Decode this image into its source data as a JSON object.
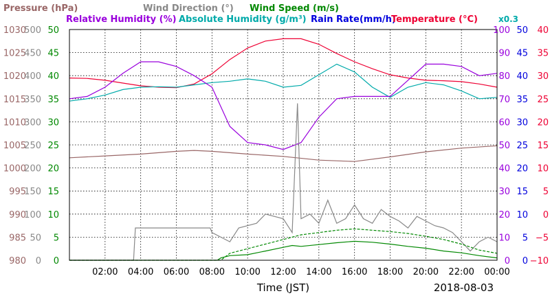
{
  "chart_data": {
    "type": "line",
    "date": "2018-08-03",
    "xlabel": "Time (JST)",
    "x_ticks": [
      "02:00",
      "04:00",
      "06:00",
      "08:00",
      "10:00",
      "12:00",
      "14:00",
      "16:00",
      "18:00",
      "20:00",
      "22:00",
      "00:00"
    ],
    "xlim_hours": [
      0,
      24
    ],
    "grid": true,
    "legend": [
      {
        "label": "Pressure (hPa)",
        "color": "#996666"
      },
      {
        "label": "Wind Direction (°)",
        "color": "#888888"
      },
      {
        "label": "Wind Speed (m/s)",
        "color": "#008800"
      },
      {
        "label": "Relative Humidity (%)",
        "color": "#9900dd"
      },
      {
        "label": "Absolute Humidity (g/m³)",
        "color": "#00aaaa"
      },
      {
        "label": "x0.3",
        "color": "#00aaaa"
      },
      {
        "label": "Rain Rate(mm/h)",
        "color": "#0000dd"
      },
      {
        "label": "Temperature (°C)",
        "color": "#ee0033"
      }
    ],
    "axes": {
      "pressure": {
        "color": "#996666",
        "ticks": [
          "980",
          "985",
          "990",
          "995",
          "1000",
          "1005",
          "1010",
          "1015",
          "1020",
          "1025",
          "1030"
        ],
        "range": [
          980,
          1030
        ]
      },
      "wind_direction": {
        "color": "#888888",
        "ticks": [
          "0",
          "50",
          "100",
          "150",
          "200",
          "250",
          "300",
          "350",
          "400",
          "450",
          "500"
        ],
        "range": [
          0,
          500
        ]
      },
      "wind_speed": {
        "color": "#008800",
        "ticks": [
          "0",
          "5",
          "10",
          "15",
          "20",
          "25",
          "30",
          "35",
          "40",
          "45",
          "50"
        ],
        "range": [
          0,
          50
        ]
      },
      "relative_humidity": {
        "color": "#9900dd",
        "ticks": [
          "0",
          "10",
          "20",
          "30",
          "40",
          "50",
          "60",
          "70",
          "80",
          "90",
          "100"
        ],
        "range": [
          0,
          100
        ]
      },
      "rain_rate": {
        "color": "#0000dd",
        "ticks": [
          "0",
          "5",
          "10",
          "15",
          "20",
          "25",
          "30",
          "35",
          "40",
          "45",
          "50"
        ],
        "range": [
          0,
          50
        ]
      },
      "temperature": {
        "color": "#ee0033",
        "ticks": [
          "−10",
          "−5",
          "0",
          "5",
          "10",
          "15",
          "20",
          "25",
          "30",
          "35",
          "40"
        ],
        "range": [
          -10,
          40
        ]
      }
    },
    "series": [
      {
        "name": "Pressure (hPa)",
        "axis": "pressure",
        "color": "#996666",
        "x": [
          0,
          2,
          4,
          6,
          7,
          8,
          10,
          12,
          14,
          16,
          18,
          20,
          22,
          24
        ],
        "y": [
          1002.2,
          1002.6,
          1003.0,
          1003.6,
          1003.8,
          1003.6,
          1003.0,
          1002.5,
          1001.7,
          1001.4,
          1002.4,
          1003.5,
          1004.3,
          1004.8
        ]
      },
      {
        "name": "Temperature (°C)",
        "axis": "temperature",
        "color": "#ee0033",
        "x": [
          0,
          1,
          2,
          3,
          4,
          5,
          6,
          7,
          8,
          9,
          10,
          11,
          12,
          13,
          14,
          15,
          16,
          17,
          18,
          19,
          20,
          21,
          22,
          23,
          24
        ],
        "y": [
          29.5,
          29.4,
          29.0,
          28.4,
          27.8,
          27.5,
          27.4,
          28.2,
          30.4,
          33.5,
          36.0,
          37.5,
          38.0,
          38.0,
          36.8,
          34.8,
          33.0,
          31.5,
          30.2,
          29.5,
          29.0,
          28.9,
          28.7,
          28.2,
          27.5
        ]
      },
      {
        "name": "Absolute Humidity (g/m³)",
        "axis": "wind_speed",
        "color": "#00aaaa",
        "x": [
          0,
          1,
          2,
          3,
          4,
          5,
          6,
          7,
          8,
          9,
          10,
          11,
          12,
          13,
          14,
          15,
          16,
          17,
          18,
          19,
          20,
          21,
          22,
          23,
          24
        ],
        "y": [
          34.5,
          35.0,
          35.8,
          37.0,
          37.5,
          37.6,
          37.5,
          38.0,
          38.5,
          38.8,
          39.3,
          38.8,
          37.5,
          37.9,
          40.2,
          42.5,
          40.8,
          37.5,
          35.3,
          37.5,
          38.5,
          38.0,
          36.7,
          35.0,
          35.3
        ]
      },
      {
        "name": "Relative Humidity (%)",
        "axis": "relative_humidity",
        "color": "#9900dd",
        "x": [
          0,
          1,
          2,
          3,
          4,
          5,
          6,
          7,
          8,
          9,
          10,
          11,
          12,
          13,
          14,
          15,
          16,
          17,
          18,
          19,
          20,
          21,
          22,
          23,
          24
        ],
        "y": [
          70,
          71,
          75,
          81,
          86,
          86,
          84,
          80,
          75,
          58,
          51,
          50,
          48,
          51,
          62,
          70,
          71,
          71,
          71,
          78,
          85,
          85,
          84,
          80,
          81
        ]
      },
      {
        "name": "Wind Direction (°)",
        "axis": "wind_direction",
        "color": "#888888",
        "x": [
          0,
          3.6,
          3.7,
          7.9,
          8.0,
          9.0,
          9.5,
          10.5,
          11.0,
          12.0,
          12.5,
          12.8,
          13.0,
          13.5,
          14.0,
          14.5,
          15.0,
          15.5,
          16.0,
          16.5,
          17.0,
          17.5,
          18.0,
          18.5,
          19.0,
          19.5,
          20.0,
          20.5,
          21.0,
          21.5,
          22.0,
          22.5,
          23.0,
          23.5,
          24.0
        ],
        "y": [
          0,
          0,
          70,
          70,
          60,
          40,
          70,
          80,
          100,
          90,
          60,
          340,
          90,
          100,
          80,
          130,
          80,
          90,
          120,
          90,
          80,
          110,
          95,
          85,
          70,
          95,
          85,
          75,
          70,
          60,
          40,
          20,
          40,
          50,
          40
        ]
      },
      {
        "name": "Wind Speed (m/s)",
        "axis": "wind_speed",
        "color": "#008800",
        "x": [
          0,
          8.3,
          8.5,
          9,
          10,
          11,
          12,
          12.5,
          13,
          14,
          15,
          16,
          17,
          18,
          19,
          20,
          21,
          22,
          23,
          24
        ],
        "y": [
          0,
          0,
          0.5,
          1.0,
          1.2,
          2.0,
          2.8,
          3.2,
          3.0,
          3.4,
          3.8,
          4.1,
          3.9,
          3.5,
          3.0,
          2.6,
          2.0,
          1.6,
          1.0,
          0.5
        ]
      },
      {
        "name": "Wind Speed (m/s)",
        "axis": "wind_speed",
        "color": "#008800",
        "dashed": true,
        "x": [
          0,
          8.5,
          9,
          10,
          11,
          12,
          13,
          14,
          15,
          16,
          17,
          18,
          19,
          20,
          21,
          22,
          23,
          24
        ],
        "y": [
          0,
          0,
          1.5,
          2.5,
          3.5,
          4.5,
          5.5,
          6.0,
          6.5,
          6.8,
          6.5,
          6.2,
          5.8,
          5.2,
          4.5,
          3.5,
          2.2,
          1.5
        ]
      }
    ]
  }
}
